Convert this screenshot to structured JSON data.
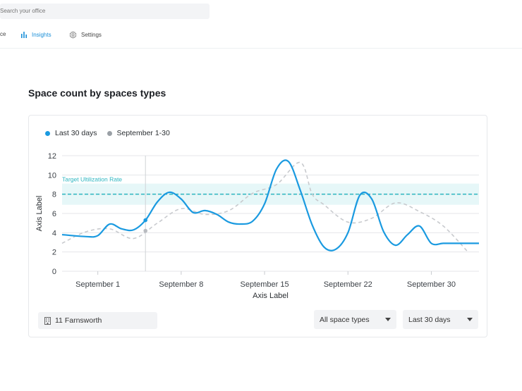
{
  "search": {
    "placeholder": "Search your office"
  },
  "nav": {
    "items": [
      {
        "label": "ce",
        "icon": "space-icon"
      },
      {
        "label": "Insights",
        "icon": "bar-chart-icon"
      },
      {
        "label": "Settings",
        "icon": "gear-icon"
      }
    ],
    "active": "Insights"
  },
  "section": {
    "title": "Space count by spaces types"
  },
  "legend": {
    "items": [
      {
        "label": "Last 30 days",
        "color": "#1a9ae0"
      },
      {
        "label": "September 1-30",
        "color": "#9aa0a6"
      }
    ]
  },
  "chart_data": {
    "type": "line",
    "xlabel": "Axis Label",
    "ylabel": "Axis Label",
    "ylim": [
      0,
      12
    ],
    "yticks": [
      0,
      2,
      4,
      6,
      8,
      10,
      12
    ],
    "x_tick_labels": [
      "September 1",
      "September 8",
      "September 15",
      "September 22",
      "September 30"
    ],
    "x_tick_positions": [
      1,
      8,
      15,
      22,
      29
    ],
    "xlim": [
      -2,
      33
    ],
    "target": {
      "label": "Target Ultilization Rate",
      "value": 8,
      "band": [
        6.9,
        9.1
      ],
      "color": "#2bb5c0"
    },
    "highlight_x": 5,
    "series": [
      {
        "name": "Last 30 days",
        "color": "#1a9ae0",
        "dashed": false,
        "x": [
          -2,
          0,
          1,
          2,
          3,
          4,
          5,
          6,
          7,
          8,
          9,
          10,
          11,
          12,
          13,
          14,
          15,
          16,
          17,
          18,
          19,
          20,
          21,
          22,
          23,
          24,
          25,
          26,
          27,
          28,
          29,
          30,
          31,
          32,
          33
        ],
        "values": [
          3.8,
          3.6,
          3.7,
          4.9,
          4.4,
          4.3,
          5.3,
          7.2,
          8.2,
          7.5,
          6.1,
          6.3,
          5.9,
          5.1,
          4.9,
          5.2,
          7.0,
          10.6,
          11.4,
          8.4,
          4.8,
          2.5,
          2.3,
          4.0,
          7.9,
          7.5,
          4.1,
          2.7,
          3.8,
          4.7,
          2.9,
          2.9,
          2.9,
          2.9,
          2.9
        ]
      },
      {
        "name": "September 1-30",
        "color": "#c8cace",
        "dashed": true,
        "x": [
          -2,
          0,
          2,
          4,
          6,
          8,
          10,
          12,
          14,
          16,
          18,
          19,
          20,
          22,
          24,
          26,
          28,
          30,
          32
        ],
        "values": [
          2.9,
          4.1,
          4.4,
          3.4,
          5.0,
          6.5,
          5.9,
          6.3,
          8.1,
          9.0,
          11.3,
          8.0,
          6.9,
          5.1,
          5.5,
          7.1,
          6.2,
          4.7,
          2.1
        ]
      }
    ]
  },
  "filters": {
    "building": "11 Farnsworth",
    "space_types": "All space types",
    "period": "Last 30 days"
  }
}
